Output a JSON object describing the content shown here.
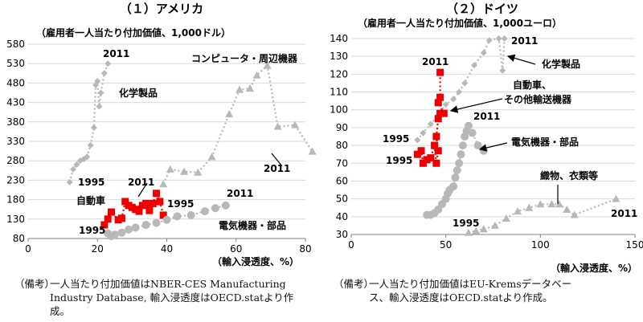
{
  "chart_data": [
    {
      "type": "scatter",
      "title": "（１）アメリカ",
      "unit_label": "（雇用者一人当たり付加価値、1,000ドル）",
      "xlabel": "（輸入浸透度、%）",
      "xlim": [
        0,
        80
      ],
      "ylim": [
        80,
        580
      ],
      "xticks": [
        0,
        20,
        40,
        60,
        80
      ],
      "yticks": [
        80,
        130,
        180,
        230,
        280,
        330,
        380,
        430,
        480,
        530,
        580
      ],
      "series": [
        {
          "name": "コンピュータ・周辺機器",
          "marker": "triangle",
          "color": "#b8b8b8",
          "line": "dotted",
          "points": [
            [
              39,
              220
            ],
            [
              41,
              258
            ],
            [
              45,
              252
            ],
            [
              49,
              250
            ],
            [
              53,
              290
            ],
            [
              58,
              400
            ],
            [
              61,
              463
            ],
            [
              64,
              466
            ],
            [
              66,
              500
            ],
            [
              69,
              525
            ],
            [
              72,
              368
            ],
            [
              77,
              372
            ],
            [
              82,
              304
            ]
          ]
        },
        {
          "name": "化学製品",
          "marker": "diamond",
          "color": "#b8b8b8",
          "line": "dotted",
          "points": [
            [
              12,
              225
            ],
            [
              13,
              258
            ],
            [
              14,
              270
            ],
            [
              15,
              280
            ],
            [
              16,
              284
            ],
            [
              17,
              290
            ],
            [
              18,
              320
            ],
            [
              19,
              365
            ],
            [
              19.5,
              475
            ],
            [
              20,
              485
            ],
            [
              20.5,
              420
            ],
            [
              21,
              455
            ],
            [
              22,
              505
            ],
            [
              23,
              530
            ]
          ]
        },
        {
          "name": "自動車",
          "marker": "square",
          "color": "#ee0000",
          "line": "dotted",
          "points": [
            [
              22,
              115
            ],
            [
              23,
              130
            ],
            [
              24,
              148
            ],
            [
              26,
              128
            ],
            [
              27,
              132
            ],
            [
              28,
              175
            ],
            [
              29,
              165
            ],
            [
              30,
              160
            ],
            [
              31,
              155
            ],
            [
              32,
              150
            ],
            [
              33,
              165
            ],
            [
              34,
              170
            ],
            [
              35,
              152
            ],
            [
              36,
              170
            ],
            [
              37,
              196
            ],
            [
              38,
              175
            ],
            [
              39,
              140
            ]
          ]
        },
        {
          "name": "電気機器・部品",
          "marker": "circle",
          "color": "#b8b8b8",
          "line": "dotted",
          "points": [
            [
              23,
              93
            ],
            [
              24,
              86
            ],
            [
              25,
              90
            ],
            [
              27,
              95
            ],
            [
              29,
              103
            ],
            [
              31,
              108
            ],
            [
              34,
              115
            ],
            [
              37,
              120
            ],
            [
              40,
              128
            ],
            [
              43,
              137
            ],
            [
              47,
              140
            ],
            [
              51,
              150
            ],
            [
              54,
              158
            ],
            [
              57,
              165
            ]
          ]
        }
      ],
      "annotations": {
        "usa_computer": {
          "text": "コンピュータ・周辺機器"
        },
        "usa_computer_2011": {
          "text": "2011"
        },
        "usa_chem": {
          "text": "化学製品"
        },
        "usa_chem_2011": {
          "text": "2011"
        },
        "usa_chem_1995": {
          "text": "1995"
        },
        "usa_auto": {
          "text": "自動車"
        },
        "usa_auto_2011": {
          "text": "2011"
        },
        "usa_auto_1995": {
          "text": "1995"
        },
        "usa_elec": {
          "text": "電気機器・部品"
        },
        "usa_elec_2011": {
          "text": "2011"
        },
        "usa_elec_1995": {
          "text": "1995"
        }
      }
    },
    {
      "type": "scatter",
      "title": "（２）ドイツ",
      "unit_label": "（雇用者一人当たり付加価値、1,000ユーロ）",
      "xlabel": "（輸入浸透度、%）",
      "xlim": [
        0,
        150
      ],
      "ylim": [
        30,
        140
      ],
      "xticks": [
        0,
        50,
        100,
        150
      ],
      "yticks": [
        30,
        40,
        50,
        60,
        70,
        80,
        90,
        100,
        110,
        120,
        130,
        140
      ],
      "series": [
        {
          "name": "化学製品",
          "marker": "diamond",
          "color": "#b8b8b8",
          "line": "dotted",
          "points": [
            [
              35,
              83
            ],
            [
              38,
              87
            ],
            [
              42,
              92
            ],
            [
              46,
              97
            ],
            [
              50,
              103
            ],
            [
              54,
              106
            ],
            [
              57,
              110
            ],
            [
              60,
              115
            ],
            [
              65,
              125
            ],
            [
              70,
              132
            ],
            [
              73,
              139
            ],
            [
              78,
              140
            ],
            [
              80,
              122
            ],
            [
              81,
              140
            ]
          ]
        },
        {
          "name": "自動車、その他輸送機器",
          "marker": "square",
          "color": "#ee0000",
          "line": "dotted",
          "points": [
            [
              35,
              75
            ],
            [
              37,
              77
            ],
            [
              38,
              70
            ],
            [
              40,
              72
            ],
            [
              42,
              73
            ],
            [
              44,
              80
            ],
            [
              45,
              70
            ],
            [
              46,
              77
            ],
            [
              45,
              85
            ],
            [
              46,
              95
            ],
            [
              47,
              98
            ],
            [
              49,
              98
            ],
            [
              46,
              104
            ],
            [
              47,
              107
            ],
            [
              47,
              121
            ]
          ]
        },
        {
          "name": "電気機器・部品",
          "marker": "circle",
          "color": "#b8b8b8",
          "line": "dotted",
          "points": [
            [
              40,
              41
            ],
            [
              42,
              41
            ],
            [
              44,
              42
            ],
            [
              46,
              44
            ],
            [
              48,
              47
            ],
            [
              50,
              50
            ],
            [
              51,
              53
            ],
            [
              52,
              55
            ],
            [
              54,
              57
            ],
            [
              55,
              62
            ],
            [
              56,
              66
            ],
            [
              57,
              70
            ],
            [
              58,
              75
            ],
            [
              59,
              80
            ],
            [
              60,
              85
            ],
            [
              61,
              88
            ],
            [
              62,
              91
            ],
            [
              64,
              87
            ],
            [
              67,
              80
            ],
            [
              70,
              77
            ]
          ]
        },
        {
          "name": "織物、衣類等",
          "marker": "triangle",
          "color": "#b8b8b8",
          "line": "dotted",
          "points": [
            [
              62,
              31
            ],
            [
              66,
              32
            ],
            [
              70,
              33
            ],
            [
              76,
              35
            ],
            [
              82,
              39
            ],
            [
              88,
              43
            ],
            [
              94,
              45
            ],
            [
              100,
              47
            ],
            [
              106,
              47
            ],
            [
              110,
              47
            ],
            [
              114,
              44
            ],
            [
              118,
              41
            ],
            [
              140,
              50
            ]
          ]
        }
      ],
      "annotations": {
        "de_chem": {
          "text": "化学製品"
        },
        "de_chem_2011": {
          "text": "2011"
        },
        "de_chem_1995": {
          "text": "1995"
        },
        "de_auto_l1": {
          "text": "自動車、"
        },
        "de_auto_l2": {
          "text": "その他輸送機器"
        },
        "de_auto_2011": {
          "text": "2011"
        },
        "de_auto_1995": {
          "text": "1995"
        },
        "de_elec": {
          "text": "電気機器・部品"
        },
        "de_elec_2011": {
          "text": "2011"
        },
        "de_tex": {
          "text": "織物、衣類等"
        },
        "de_tex_2011": {
          "text": "2011"
        },
        "de_tex_1995": {
          "text": "1995"
        }
      }
    }
  ],
  "notes": {
    "left_label": "（備考）",
    "left_text": "一人当たり付加価値はNBER-CES Manufacturing\nIndustry Database, 輸入浸透度はOECD.statより作\n成。",
    "right_label": "（備考）",
    "right_text": "一人当たり付加価値はEU-Kremsデータベー\nス、輸入浸透度はOECD.statより作成。"
  }
}
